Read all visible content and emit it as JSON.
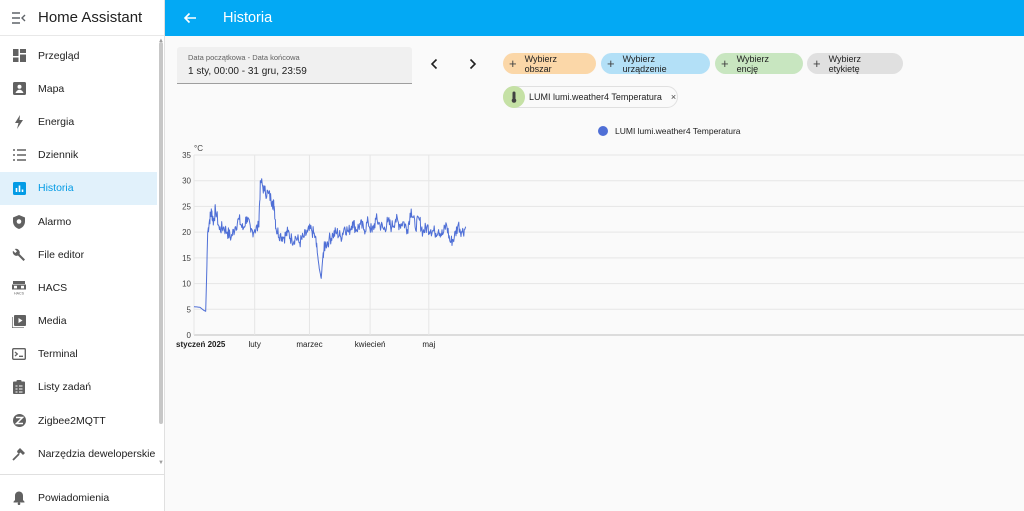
{
  "app": {
    "title": "Home Assistant"
  },
  "sidebar": {
    "items": [
      {
        "label": "Przegląd",
        "icon": "dashboard-icon",
        "active": false
      },
      {
        "label": "Mapa",
        "icon": "map-icon",
        "active": false
      },
      {
        "label": "Energia",
        "icon": "lightning-icon",
        "active": false
      },
      {
        "label": "Dziennik",
        "icon": "list-icon",
        "active": false
      },
      {
        "label": "Historia",
        "icon": "chart-bar-icon",
        "active": true
      },
      {
        "label": "Alarmo",
        "icon": "shield-icon",
        "active": false
      },
      {
        "label": "File editor",
        "icon": "wrench-icon",
        "active": false
      },
      {
        "label": "HACS",
        "icon": "hacs-icon",
        "active": false
      },
      {
        "label": "Media",
        "icon": "play-box-icon",
        "active": false
      },
      {
        "label": "Terminal",
        "icon": "console-icon",
        "active": false
      },
      {
        "label": "Listy zadań",
        "icon": "clipboard-list-icon",
        "active": false
      },
      {
        "label": "Zigbee2MQTT",
        "icon": "zigbee-icon",
        "active": false
      },
      {
        "label": "Narzędzia deweloperskie",
        "icon": "hammer-icon",
        "active": false
      }
    ],
    "notifications": {
      "label": "Powiadomienia",
      "icon": "bell-icon"
    }
  },
  "header": {
    "title": "Historia"
  },
  "date_picker": {
    "label": "Data początkowa - Data końcowa",
    "value": "1 sty, 00:00 - 31 gru, 23:59"
  },
  "targets": {
    "area": "Wybierz obszar",
    "device": "Wybierz urządzenie",
    "entity": "Wybierz encję",
    "label": "Wybierz etykietę"
  },
  "selected_entity": {
    "label": "LUMI lumi.weather4 Temperatura",
    "close": "×"
  },
  "colors": {
    "primary": "#03a9f4",
    "active_bg": "#e1f1fb",
    "series": "#4f6fd6",
    "chip_area": "#fbd7a8",
    "chip_device": "#b3e0f7",
    "chip_entity": "#c8e6c0",
    "chip_label": "#e0e0e0"
  },
  "chart_data": {
    "type": "line",
    "ylabel": "°C",
    "ylim": [
      0,
      35
    ],
    "yticks": [
      0,
      5,
      10,
      15,
      20,
      25,
      30,
      35
    ],
    "xticks": [
      "styczeń 2025",
      "luty",
      "marzec",
      "kwiecień",
      "maj"
    ],
    "grid": true,
    "legend_position": "top-center",
    "series": [
      {
        "name": "LUMI lumi.weather4 Temperatura",
        "points": [
          [
            "2025-01-01",
            5.5
          ],
          [
            "2025-01-04",
            5.4
          ],
          [
            "2025-01-06",
            4.8
          ],
          [
            "2025-01-07",
            4.6
          ],
          [
            "2025-01-08",
            20.0
          ],
          [
            "2025-01-09",
            22.5
          ],
          [
            "2025-01-10",
            24.0
          ],
          [
            "2025-01-11",
            22.0
          ],
          [
            "2025-01-12",
            24.5
          ],
          [
            "2025-01-14",
            20.5
          ],
          [
            "2025-01-16",
            21.0
          ],
          [
            "2025-01-18",
            20.0
          ],
          [
            "2025-01-20",
            19.0
          ],
          [
            "2025-01-22",
            21.0
          ],
          [
            "2025-01-24",
            22.5
          ],
          [
            "2025-01-26",
            20.5
          ],
          [
            "2025-01-28",
            23.0
          ],
          [
            "2025-01-30",
            20.0
          ],
          [
            "2025-02-01",
            20.5
          ],
          [
            "2025-02-03",
            21.0
          ],
          [
            "2025-02-04",
            30.0
          ],
          [
            "2025-02-06",
            28.0
          ],
          [
            "2025-02-08",
            27.5
          ],
          [
            "2025-02-10",
            26.0
          ],
          [
            "2025-02-11",
            25.0
          ],
          [
            "2025-02-12",
            20.5
          ],
          [
            "2025-02-14",
            19.5
          ],
          [
            "2025-02-16",
            19.0
          ],
          [
            "2025-02-18",
            20.0
          ],
          [
            "2025-02-20",
            18.5
          ],
          [
            "2025-02-22",
            19.0
          ],
          [
            "2025-02-24",
            18.0
          ],
          [
            "2025-02-26",
            19.0
          ],
          [
            "2025-02-28",
            20.0
          ],
          [
            "2025-03-02",
            20.5
          ],
          [
            "2025-03-04",
            19.0
          ],
          [
            "2025-03-05",
            16.0
          ],
          [
            "2025-03-06",
            13.0
          ],
          [
            "2025-03-07",
            11.0
          ],
          [
            "2025-03-08",
            16.0
          ],
          [
            "2025-03-09",
            17.5
          ],
          [
            "2025-03-11",
            18.5
          ],
          [
            "2025-03-13",
            19.5
          ],
          [
            "2025-03-15",
            20.0
          ],
          [
            "2025-03-17",
            19.0
          ],
          [
            "2025-03-19",
            21.0
          ],
          [
            "2025-03-21",
            20.0
          ],
          [
            "2025-03-23",
            22.0
          ],
          [
            "2025-03-25",
            20.5
          ],
          [
            "2025-03-27",
            21.5
          ],
          [
            "2025-03-29",
            20.5
          ],
          [
            "2025-03-31",
            22.0
          ],
          [
            "2025-04-02",
            20.0
          ],
          [
            "2025-04-04",
            22.5
          ],
          [
            "2025-04-06",
            21.5
          ],
          [
            "2025-04-08",
            20.5
          ],
          [
            "2025-04-10",
            22.0
          ],
          [
            "2025-04-12",
            21.0
          ],
          [
            "2025-04-14",
            22.5
          ],
          [
            "2025-04-16",
            21.5
          ],
          [
            "2025-04-18",
            22.0
          ],
          [
            "2025-04-20",
            20.5
          ],
          [
            "2025-04-22",
            24.5
          ],
          [
            "2025-04-24",
            21.0
          ],
          [
            "2025-04-26",
            22.5
          ],
          [
            "2025-04-28",
            20.0
          ],
          [
            "2025-04-30",
            21.0
          ],
          [
            "2025-05-02",
            20.5
          ],
          [
            "2025-05-04",
            20.0
          ],
          [
            "2025-05-06",
            20.5
          ],
          [
            "2025-05-08",
            19.5
          ],
          [
            "2025-05-10",
            21.5
          ],
          [
            "2025-05-12",
            18.0
          ],
          [
            "2025-05-14",
            19.0
          ],
          [
            "2025-05-16",
            21.5
          ],
          [
            "2025-05-18",
            20.0
          ],
          [
            "2025-05-20",
            21.0
          ]
        ]
      }
    ]
  }
}
